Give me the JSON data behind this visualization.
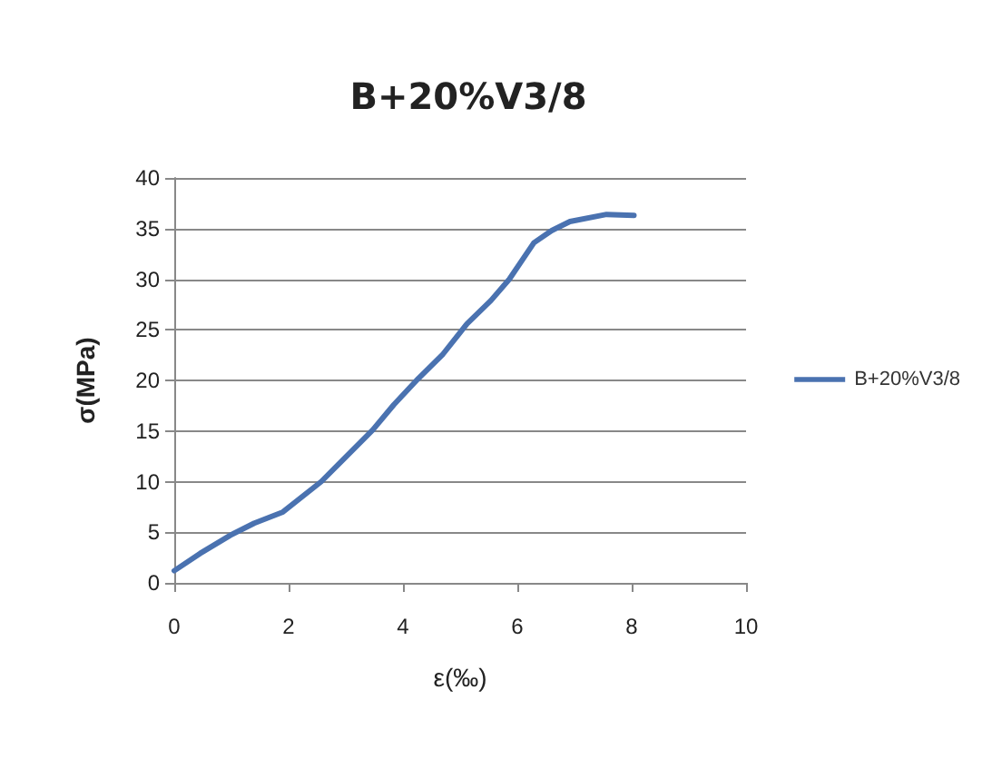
{
  "chart_data": {
    "type": "line",
    "title": "B+20%V3/8",
    "xlabel": "ε(‰)",
    "ylabel": "σ(MPa)",
    "xlim": [
      0,
      10
    ],
    "xticks": [
      0,
      2,
      4,
      6,
      8,
      10
    ],
    "ylim": [
      0,
      40
    ],
    "yticks": [
      0,
      5,
      10,
      15,
      20,
      25,
      30,
      35,
      40
    ],
    "grid": "y",
    "legend": "right",
    "marker": "none",
    "line_style": "solid",
    "series": [
      {
        "name": "B+20%V3/8",
        "color": "#4a72b0",
        "x": [
          0,
          0.45,
          0.98,
          1.4,
          1.9,
          2.57,
          3.47,
          3.84,
          4.27,
          4.7,
          5.12,
          5.54,
          5.86,
          6.29,
          6.6,
          6.92,
          7.56,
          8.04
        ],
        "values": [
          1.2,
          2.9,
          4.7,
          5.9,
          7.0,
          10,
          15.1,
          17.6,
          20.2,
          22.6,
          25.6,
          27.9,
          30,
          33.6,
          34.8,
          35.7,
          36.4,
          36.3
        ]
      }
    ]
  }
}
